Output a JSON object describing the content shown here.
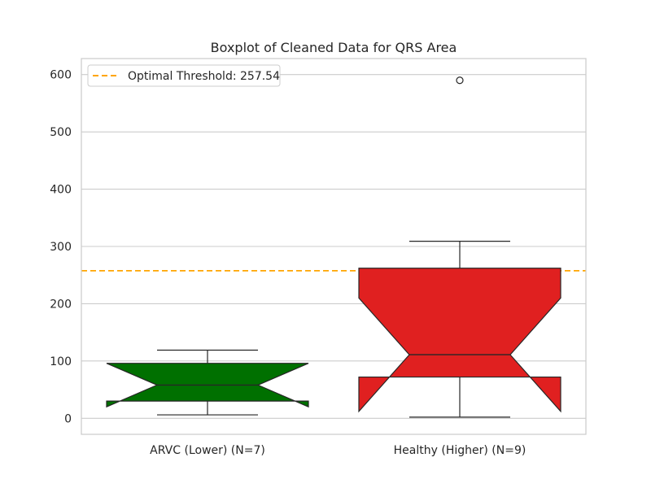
{
  "chart_data": {
    "type": "boxplot",
    "title": "Boxplot of Cleaned Data for QRS Area",
    "xlabel": "",
    "ylabel": "",
    "ylim": [
      -28,
      628
    ],
    "yticks": [
      0,
      100,
      200,
      300,
      400,
      500,
      600
    ],
    "grid": true,
    "legend_placement": "top-left",
    "categories": [
      "ARVC (Lower) (N=7)",
      "Healthy (Higher) (N=9)"
    ],
    "boxes": [
      {
        "category": "ARVC (Lower) (N=7)",
        "color": "#007000",
        "notched": true,
        "whisker_low": 6,
        "q1": 30,
        "median": 58,
        "q3": 96,
        "whisker_high": 119,
        "notch_low": 20,
        "notch_high": 96,
        "outliers": []
      },
      {
        "category": "Healthy (Higher) (N=9)",
        "color": "#e02020",
        "notched": true,
        "whisker_low": 2,
        "q1": 72,
        "median": 111,
        "q3": 262,
        "whisker_high": 309,
        "notch_low": 12,
        "notch_high": 210,
        "outliers": [
          590
        ]
      }
    ],
    "threshold": {
      "label": "Optimal Threshold: 257.54",
      "value": 257.54,
      "color": "#ffa500"
    }
  }
}
